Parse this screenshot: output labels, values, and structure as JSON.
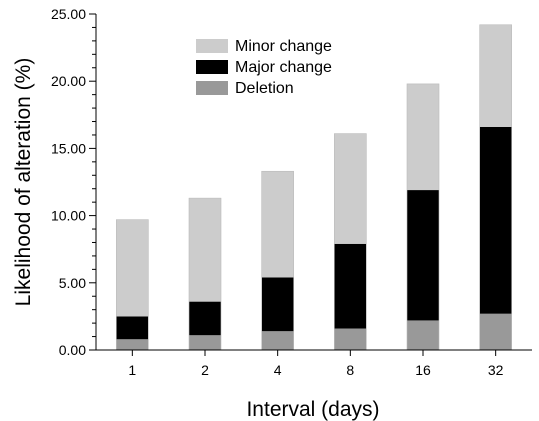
{
  "chart_data": {
    "type": "bar",
    "stacked": true,
    "categories": [
      "1",
      "2",
      "4",
      "8",
      "16",
      "32"
    ],
    "xlabel": "Interval (days)",
    "ylabel": "Likelihood of alteration (%)",
    "ylim": [
      0,
      25
    ],
    "yticks": [
      "0.00",
      "5.00",
      "10.00",
      "15.00",
      "20.00",
      "25.00"
    ],
    "legend_position": "top-left",
    "grid": false,
    "series": [
      {
        "name": "Deletion",
        "color": "#999999",
        "values": [
          0.8,
          1.1,
          1.4,
          1.6,
          2.2,
          2.7
        ]
      },
      {
        "name": "Major change",
        "color": "#000000",
        "values": [
          1.7,
          2.5,
          4.0,
          6.3,
          9.7,
          13.9
        ]
      },
      {
        "name": "Minor change",
        "color": "#cccccc",
        "values": [
          7.2,
          7.7,
          7.9,
          8.2,
          7.9,
          7.6
        ]
      }
    ],
    "legend_order": [
      "Minor change",
      "Major change",
      "Deletion"
    ]
  }
}
